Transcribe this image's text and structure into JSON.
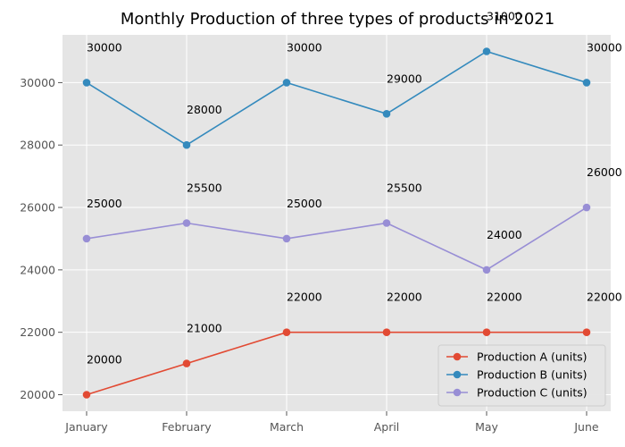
{
  "chart_data": {
    "type": "line",
    "title": "Monthly Production of three types of products in 2021",
    "xlabel": "",
    "ylabel": "",
    "categories": [
      "January",
      "February",
      "March",
      "April",
      "May",
      "June"
    ],
    "series": [
      {
        "name": "Production A (units)",
        "color": "#e24a33",
        "values": [
          20000,
          21000,
          22000,
          22000,
          22000,
          22000
        ]
      },
      {
        "name": "Production B (units)",
        "color": "#348abd",
        "values": [
          30000,
          28000,
          30000,
          29000,
          31000,
          30000
        ]
      },
      {
        "name": "Production C (units)",
        "color": "#988ed5",
        "values": [
          25000,
          25500,
          25000,
          25500,
          24000,
          26000
        ]
      }
    ],
    "ylim": [
      19470,
      31530
    ],
    "yticks": [
      20000,
      22000,
      24000,
      26000,
      28000,
      30000
    ],
    "grid": true,
    "legend_position": "lower-right",
    "data_labels": true,
    "plot_background": "#e5e5e5"
  }
}
